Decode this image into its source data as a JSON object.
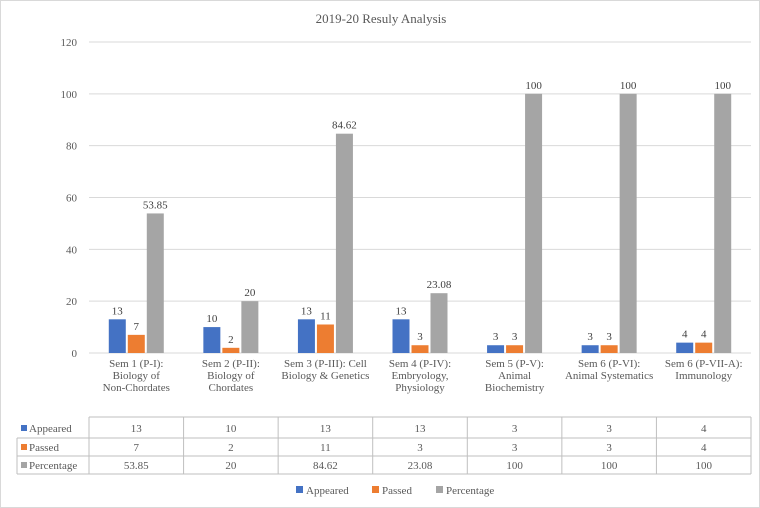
{
  "chart_data": {
    "type": "bar",
    "title": "2019-20 Resuly Analysis",
    "ylim": [
      0,
      120
    ],
    "yticks": [
      0,
      20,
      40,
      60,
      80,
      100,
      120
    ],
    "grid": true,
    "legend_position": "bottom",
    "categories": [
      "Sem 1 (P-I): Biology of Non-Chordates",
      "Sem 2 (P-II): Biology of Chordates",
      "Sem 3 (P-III): Cell Biology & Genetics",
      "Sem 4 (P-IV): Embryology, Physiology",
      "Sem 5 (P-V): Animal Biochemistry",
      "Sem 6 (P-VI): Animal Systematics",
      "Sem 6 (P-VII-A): Immunology"
    ],
    "series": [
      {
        "name": "Appeared",
        "color": "#4472c4",
        "values": [
          13,
          10,
          13,
          13,
          3,
          3,
          4
        ],
        "labels": [
          "13",
          "10",
          "13",
          "13",
          "3",
          "3",
          "4"
        ]
      },
      {
        "name": "Passed",
        "color": "#ed7d31",
        "values": [
          7,
          2,
          11,
          3,
          3,
          3,
          4
        ],
        "labels": [
          "7",
          "2",
          "11",
          "3",
          "3",
          "3",
          "4"
        ]
      },
      {
        "name": "Percentage",
        "color": "#a5a5a5",
        "values": [
          53.85,
          20,
          84.62,
          23.08,
          100,
          100,
          100
        ],
        "labels": [
          "53.85",
          "20",
          "84.62",
          "23.08",
          "100",
          "100",
          "100"
        ]
      }
    ]
  }
}
